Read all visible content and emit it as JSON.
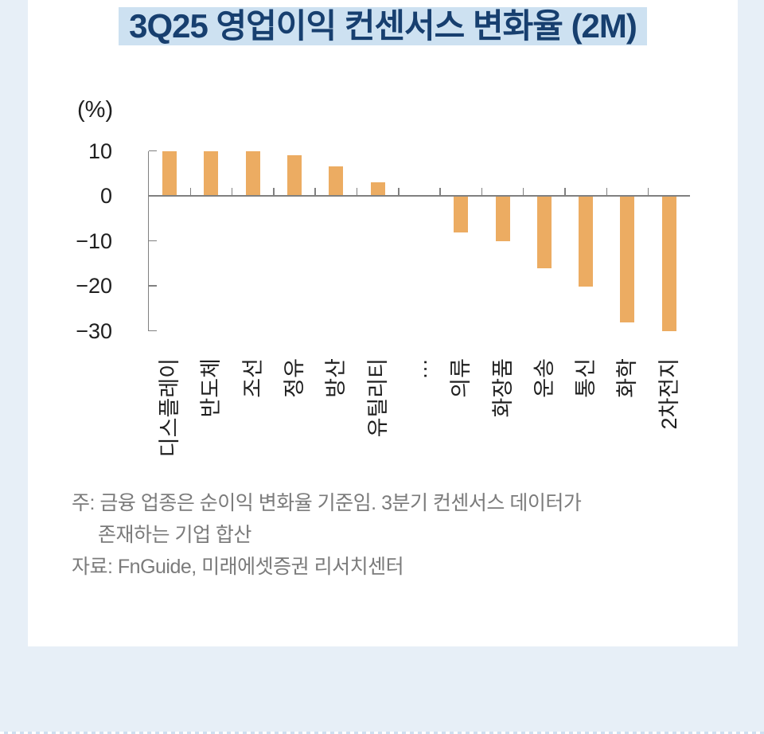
{
  "colors": {
    "page_bg": "#e7eff7",
    "card_bg": "#ffffff",
    "title_text": "#173f6f",
    "title_highlight": "#cde1f1",
    "bar": "#ecac62",
    "axis": "#808080",
    "tick_text": "#1f1f1f",
    "footnote_text": "#7b7b7b"
  },
  "title": {
    "text": "3Q25 영업이익 컨센서스 변화율 (2M)"
  },
  "chart_data": {
    "type": "bar",
    "title": "3Q25 영업이익 컨센서스 변화율 (2M)",
    "unit_label": "(%)",
    "categories": [
      "디스플레이",
      "반도체",
      "조선",
      "정유",
      "방산",
      "유틸리티",
      "…",
      "의류",
      "화장품",
      "운송",
      "통신",
      "화학",
      "2차전지"
    ],
    "values": [
      10,
      10,
      10,
      9,
      6.5,
      3,
      null,
      -8,
      -10,
      -16,
      -20,
      -28,
      -30
    ],
    "xlabel": "",
    "ylabel": "(%)",
    "ylim": [
      -30,
      10
    ],
    "yticks": [
      10,
      0,
      -10,
      -20,
      -30
    ],
    "grid": false,
    "legend": false,
    "bar_color": "#ecac62",
    "axis_color": "#808080"
  },
  "footnote": {
    "lines": [
      "주: 금융 업종은 순이익 변화율 기준임. 3분기 컨센서스 데이터가",
      "존재하는 기업 합산",
      "자료: FnGuide, 미래에셋증권 리서치센터"
    ]
  }
}
